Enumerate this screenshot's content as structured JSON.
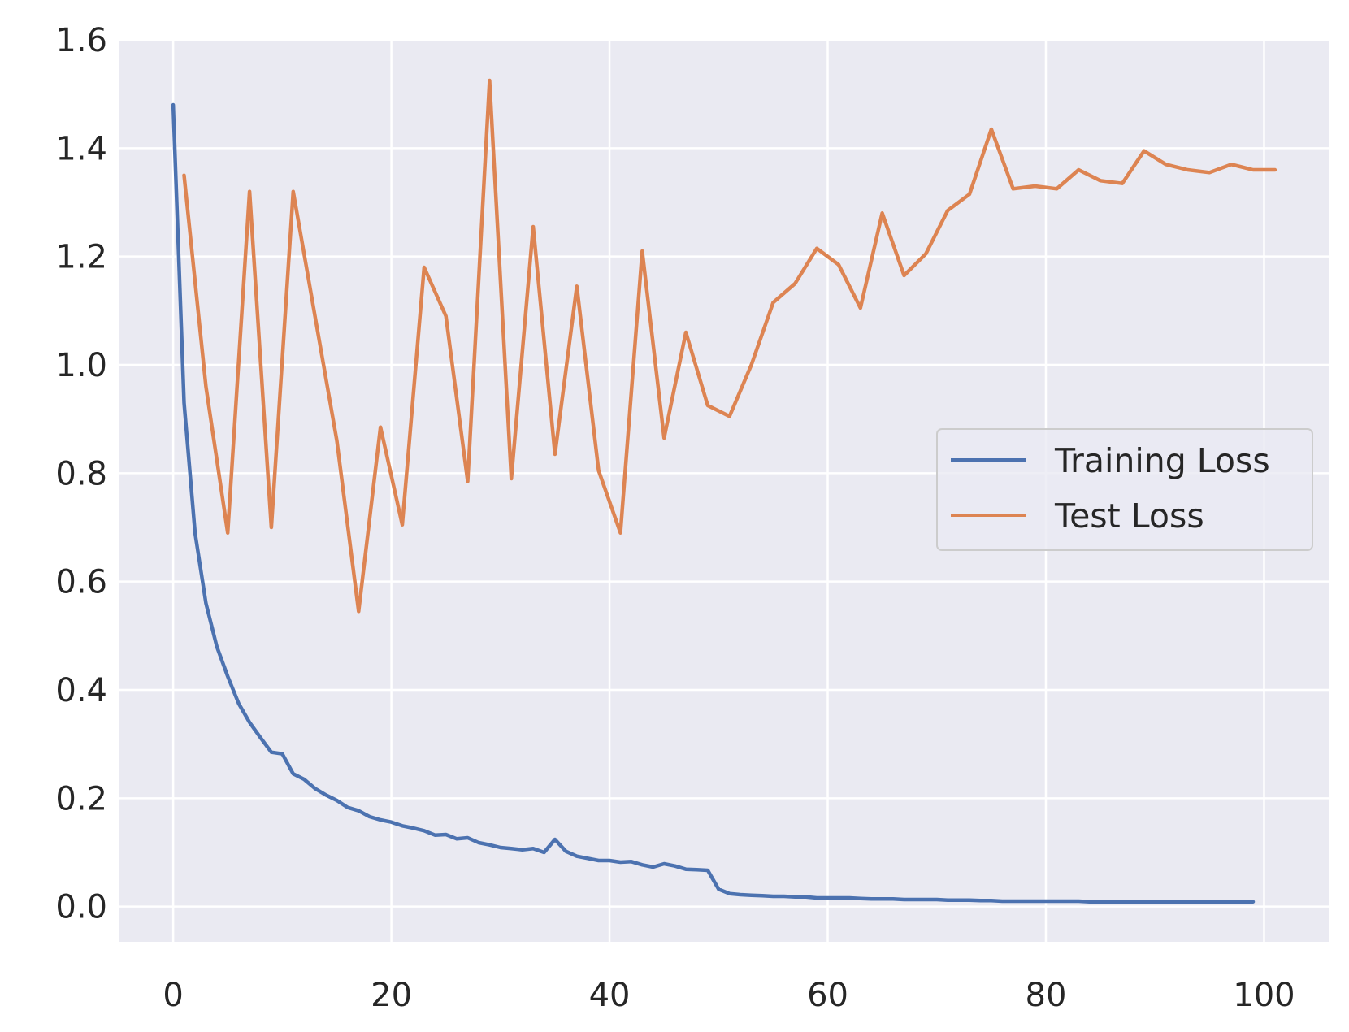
{
  "chart_data": {
    "type": "line",
    "title": "",
    "xlabel": "",
    "ylabel": "",
    "xlim": [
      -5,
      106
    ],
    "ylim": [
      -0.065,
      1.6
    ],
    "xticks": [
      0,
      20,
      40,
      60,
      80,
      100
    ],
    "xtick_labels": [
      "0",
      "20",
      "40",
      "60",
      "80",
      "100"
    ],
    "yticks": [
      0.0,
      0.2,
      0.4,
      0.6,
      0.8,
      1.0,
      1.2,
      1.4,
      1.6
    ],
    "ytick_labels": [
      "0.0",
      "0.2",
      "0.4",
      "0.6",
      "0.8",
      "1.0",
      "1.2",
      "1.4",
      "1.6"
    ],
    "grid": true,
    "legend_position": "center-right",
    "series": [
      {
        "name": "Training Loss",
        "color": "#4c72b0",
        "x": [
          0,
          1,
          2,
          3,
          4,
          5,
          6,
          7,
          8,
          9,
          10,
          11,
          12,
          13,
          14,
          15,
          16,
          17,
          18,
          19,
          20,
          21,
          22,
          23,
          24,
          25,
          26,
          27,
          28,
          29,
          30,
          31,
          32,
          33,
          34,
          35,
          36,
          37,
          38,
          39,
          40,
          41,
          42,
          43,
          44,
          45,
          46,
          47,
          48,
          49,
          50,
          51,
          52,
          53,
          54,
          55,
          56,
          57,
          58,
          59,
          60,
          61,
          62,
          63,
          64,
          65,
          66,
          67,
          68,
          69,
          70,
          71,
          72,
          73,
          74,
          75,
          76,
          77,
          78,
          79,
          80,
          81,
          82,
          83,
          84,
          85,
          86,
          87,
          88,
          89,
          90,
          91,
          92,
          93,
          94,
          95,
          96,
          97,
          98,
          99
        ],
        "values": [
          1.48,
          0.93,
          0.69,
          0.56,
          0.48,
          0.425,
          0.375,
          0.34,
          0.312,
          0.285,
          0.282,
          0.245,
          0.235,
          0.218,
          0.206,
          0.196,
          0.183,
          0.177,
          0.166,
          0.16,
          0.156,
          0.149,
          0.145,
          0.14,
          0.132,
          0.133,
          0.125,
          0.127,
          0.118,
          0.114,
          0.109,
          0.107,
          0.105,
          0.107,
          0.1,
          0.124,
          0.102,
          0.093,
          0.089,
          0.085,
          0.085,
          0.082,
          0.083,
          0.077,
          0.073,
          0.079,
          0.075,
          0.069,
          0.068,
          0.067,
          0.032,
          0.024,
          0.022,
          0.021,
          0.02,
          0.019,
          0.019,
          0.018,
          0.018,
          0.016,
          0.016,
          0.016,
          0.016,
          0.015,
          0.014,
          0.014,
          0.014,
          0.013,
          0.013,
          0.013,
          0.013,
          0.012,
          0.012,
          0.012,
          0.011,
          0.011,
          0.01,
          0.01,
          0.01,
          0.01,
          0.01,
          0.01,
          0.01,
          0.01,
          0.009,
          0.009,
          0.009,
          0.009,
          0.009,
          0.009,
          0.009,
          0.009,
          0.009,
          0.009,
          0.009,
          0.009,
          0.009,
          0.009,
          0.009,
          0.009
        ]
      },
      {
        "name": "Test Loss",
        "color": "#dd8452",
        "x": [
          1,
          3,
          5,
          7,
          9,
          11,
          13,
          15,
          17,
          19,
          21,
          23,
          25,
          27,
          29,
          31,
          33,
          35,
          37,
          39,
          41,
          43,
          45,
          47,
          49,
          51,
          53,
          55,
          57,
          59,
          61,
          63,
          65,
          67,
          69,
          71,
          73,
          75,
          77,
          79,
          81,
          83,
          85,
          87,
          89,
          91,
          93,
          95,
          97,
          99,
          101
        ],
        "values": [
          1.35,
          0.96,
          0.69,
          1.32,
          0.7,
          1.32,
          1.09,
          0.86,
          0.545,
          0.885,
          0.705,
          1.18,
          1.09,
          0.785,
          1.525,
          0.79,
          1.255,
          0.835,
          1.145,
          0.805,
          0.69,
          1.21,
          0.865,
          1.06,
          0.925,
          0.905,
          1.0,
          1.115,
          1.15,
          1.215,
          1.185,
          1.105,
          1.28,
          1.165,
          1.205,
          1.285,
          1.315,
          1.435,
          1.325,
          1.33,
          1.325,
          1.36,
          1.34,
          1.335,
          1.395,
          1.37,
          1.36,
          1.355,
          1.37,
          1.36,
          1.36
        ]
      }
    ]
  }
}
